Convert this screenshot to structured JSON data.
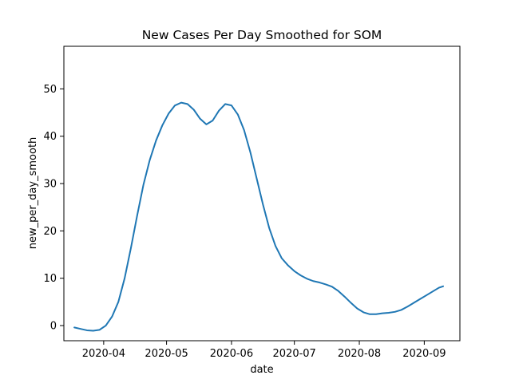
{
  "chart_data": {
    "type": "line",
    "title": "New Cases Per Day Smoothed for SOM",
    "xlabel": "date",
    "ylabel": "new_per_day_smooth",
    "grid": false,
    "legend": "none",
    "line_color": "#1f77b4",
    "xlim": [
      "2020-03-13",
      "2020-09-18"
    ],
    "ylim": [
      -3.2,
      59.0
    ],
    "x_ticks": [
      "2020-04",
      "2020-05",
      "2020-06",
      "2020-07",
      "2020-08",
      "2020-09"
    ],
    "y_ticks": [
      0,
      10,
      20,
      30,
      40,
      50
    ],
    "series": [
      {
        "x": [
          "2020-03-18",
          "2020-03-21",
          "2020-03-24",
          "2020-03-27",
          "2020-03-30",
          "2020-04-02",
          "2020-04-05",
          "2020-04-08",
          "2020-04-11",
          "2020-04-14",
          "2020-04-17",
          "2020-04-20",
          "2020-04-23",
          "2020-04-26",
          "2020-04-29",
          "2020-05-02",
          "2020-05-05",
          "2020-05-08",
          "2020-05-11",
          "2020-05-14",
          "2020-05-17",
          "2020-05-20",
          "2020-05-23",
          "2020-05-26",
          "2020-05-29",
          "2020-06-01",
          "2020-06-04",
          "2020-06-07",
          "2020-06-10",
          "2020-06-13",
          "2020-06-16",
          "2020-06-19",
          "2020-06-22",
          "2020-06-25",
          "2020-06-28",
          "2020-07-01",
          "2020-07-04",
          "2020-07-07",
          "2020-07-10",
          "2020-07-13",
          "2020-07-16",
          "2020-07-19",
          "2020-07-22",
          "2020-07-25",
          "2020-07-28",
          "2020-07-31",
          "2020-08-03",
          "2020-08-06",
          "2020-08-09",
          "2020-08-12",
          "2020-08-15",
          "2020-08-18",
          "2020-08-21",
          "2020-08-24",
          "2020-08-27",
          "2020-08-30",
          "2020-09-02",
          "2020-09-05",
          "2020-09-08",
          "2020-09-10"
        ],
        "values": [
          -0.4,
          -0.7,
          -1.0,
          -1.1,
          -0.9,
          0.0,
          1.9,
          5.0,
          10.0,
          16.4,
          23.3,
          29.8,
          35.0,
          39.1,
          42.3,
          44.8,
          46.5,
          47.1,
          46.8,
          45.6,
          43.7,
          42.5,
          43.3,
          45.4,
          46.8,
          46.5,
          44.6,
          41.3,
          36.6,
          31.1,
          25.6,
          20.6,
          16.8,
          14.2,
          12.7,
          11.5,
          10.6,
          9.9,
          9.4,
          9.1,
          8.7,
          8.2,
          7.3,
          6.1,
          4.8,
          3.6,
          2.8,
          2.4,
          2.4,
          2.6,
          2.7,
          2.9,
          3.3,
          4.0,
          4.8,
          5.6,
          6.4,
          7.2,
          8.0,
          8.3
        ]
      }
    ]
  }
}
